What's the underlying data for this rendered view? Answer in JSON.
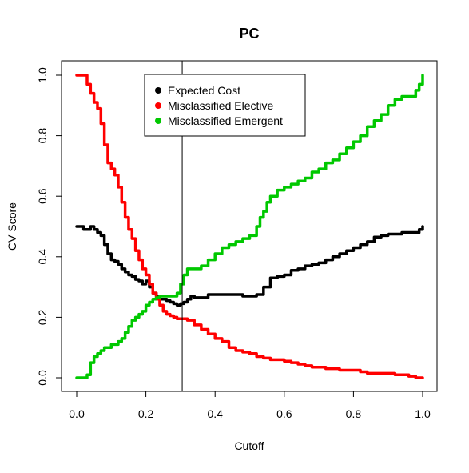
{
  "chart_data": {
    "type": "line",
    "title": "PC",
    "xlabel": "Cutoff",
    "ylabel": "CV Score",
    "xlim": [
      0,
      1
    ],
    "ylim": [
      0,
      1
    ],
    "x_ticks": [
      "0.0",
      "0.2",
      "0.4",
      "0.6",
      "0.8",
      "1.0"
    ],
    "y_ticks": [
      "0.0",
      "0.2",
      "0.4",
      "0.6",
      "0.8",
      "1.0"
    ],
    "grid": false,
    "legend_position": "top-center",
    "vline_x": 0.305,
    "series": [
      {
        "name": "Expected Cost",
        "color": "#000000",
        "x": [
          0.0,
          0.01,
          0.02,
          0.03,
          0.04,
          0.05,
          0.06,
          0.07,
          0.08,
          0.09,
          0.1,
          0.11,
          0.12,
          0.13,
          0.14,
          0.15,
          0.16,
          0.17,
          0.18,
          0.19,
          0.2,
          0.21,
          0.22,
          0.23,
          0.24,
          0.25,
          0.26,
          0.27,
          0.28,
          0.29,
          0.3,
          0.31,
          0.32,
          0.33,
          0.34,
          0.35,
          0.36,
          0.38,
          0.4,
          0.42,
          0.44,
          0.46,
          0.48,
          0.5,
          0.52,
          0.54,
          0.56,
          0.58,
          0.6,
          0.62,
          0.64,
          0.66,
          0.68,
          0.7,
          0.72,
          0.74,
          0.76,
          0.78,
          0.8,
          0.82,
          0.84,
          0.86,
          0.88,
          0.9,
          0.92,
          0.94,
          0.96,
          0.98,
          0.99,
          1.0
        ],
        "values": [
          0.5,
          0.5,
          0.49,
          0.49,
          0.5,
          0.49,
          0.48,
          0.47,
          0.44,
          0.41,
          0.39,
          0.385,
          0.375,
          0.36,
          0.35,
          0.34,
          0.335,
          0.325,
          0.32,
          0.31,
          0.32,
          0.3,
          0.28,
          0.27,
          0.26,
          0.26,
          0.255,
          0.25,
          0.245,
          0.24,
          0.245,
          0.25,
          0.26,
          0.27,
          0.265,
          0.265,
          0.265,
          0.275,
          0.275,
          0.275,
          0.275,
          0.275,
          0.27,
          0.27,
          0.275,
          0.3,
          0.33,
          0.335,
          0.34,
          0.355,
          0.36,
          0.37,
          0.375,
          0.38,
          0.39,
          0.4,
          0.41,
          0.42,
          0.43,
          0.44,
          0.45,
          0.465,
          0.47,
          0.475,
          0.475,
          0.48,
          0.48,
          0.48,
          0.49,
          0.5
        ]
      },
      {
        "name": "Misclassified Elective",
        "color": "#ff0000",
        "x": [
          0.0,
          0.01,
          0.02,
          0.03,
          0.04,
          0.05,
          0.06,
          0.07,
          0.08,
          0.09,
          0.1,
          0.11,
          0.12,
          0.13,
          0.14,
          0.15,
          0.16,
          0.17,
          0.18,
          0.19,
          0.2,
          0.21,
          0.22,
          0.23,
          0.24,
          0.25,
          0.26,
          0.27,
          0.28,
          0.29,
          0.3,
          0.32,
          0.34,
          0.36,
          0.38,
          0.4,
          0.42,
          0.44,
          0.46,
          0.48,
          0.5,
          0.52,
          0.54,
          0.56,
          0.58,
          0.6,
          0.62,
          0.64,
          0.66,
          0.68,
          0.7,
          0.72,
          0.74,
          0.76,
          0.78,
          0.8,
          0.82,
          0.84,
          0.86,
          0.88,
          0.9,
          0.92,
          0.94,
          0.96,
          0.98,
          1.0
        ],
        "values": [
          1.0,
          1.0,
          1.0,
          0.97,
          0.94,
          0.91,
          0.89,
          0.84,
          0.77,
          0.71,
          0.69,
          0.67,
          0.63,
          0.58,
          0.53,
          0.49,
          0.46,
          0.42,
          0.39,
          0.36,
          0.34,
          0.31,
          0.28,
          0.26,
          0.24,
          0.22,
          0.21,
          0.205,
          0.2,
          0.195,
          0.195,
          0.19,
          0.175,
          0.16,
          0.145,
          0.13,
          0.12,
          0.1,
          0.09,
          0.085,
          0.08,
          0.07,
          0.065,
          0.06,
          0.06,
          0.055,
          0.05,
          0.045,
          0.04,
          0.035,
          0.035,
          0.03,
          0.03,
          0.025,
          0.025,
          0.025,
          0.02,
          0.015,
          0.015,
          0.015,
          0.015,
          0.01,
          0.01,
          0.005,
          0.0,
          0.0
        ]
      },
      {
        "name": "Misclassified Emergent",
        "color": "#00c800",
        "x": [
          0.0,
          0.01,
          0.02,
          0.03,
          0.04,
          0.05,
          0.06,
          0.07,
          0.08,
          0.09,
          0.1,
          0.11,
          0.12,
          0.13,
          0.14,
          0.15,
          0.16,
          0.17,
          0.18,
          0.19,
          0.2,
          0.21,
          0.22,
          0.23,
          0.24,
          0.25,
          0.26,
          0.27,
          0.28,
          0.29,
          0.3,
          0.31,
          0.32,
          0.33,
          0.34,
          0.36,
          0.38,
          0.4,
          0.42,
          0.44,
          0.46,
          0.48,
          0.5,
          0.52,
          0.53,
          0.54,
          0.55,
          0.56,
          0.58,
          0.6,
          0.62,
          0.64,
          0.66,
          0.68,
          0.7,
          0.72,
          0.74,
          0.76,
          0.78,
          0.8,
          0.82,
          0.84,
          0.86,
          0.88,
          0.9,
          0.92,
          0.94,
          0.96,
          0.98,
          0.99,
          1.0
        ],
        "values": [
          0.0,
          0.0,
          0.0,
          0.01,
          0.05,
          0.07,
          0.08,
          0.09,
          0.1,
          0.1,
          0.11,
          0.11,
          0.12,
          0.13,
          0.15,
          0.17,
          0.19,
          0.2,
          0.21,
          0.22,
          0.24,
          0.25,
          0.26,
          0.265,
          0.27,
          0.27,
          0.27,
          0.27,
          0.27,
          0.28,
          0.31,
          0.34,
          0.36,
          0.36,
          0.36,
          0.37,
          0.39,
          0.41,
          0.43,
          0.44,
          0.45,
          0.46,
          0.47,
          0.5,
          0.53,
          0.55,
          0.58,
          0.6,
          0.62,
          0.63,
          0.64,
          0.65,
          0.66,
          0.68,
          0.69,
          0.71,
          0.72,
          0.74,
          0.76,
          0.78,
          0.8,
          0.83,
          0.85,
          0.87,
          0.9,
          0.92,
          0.93,
          0.93,
          0.95,
          0.97,
          1.0
        ]
      }
    ]
  }
}
